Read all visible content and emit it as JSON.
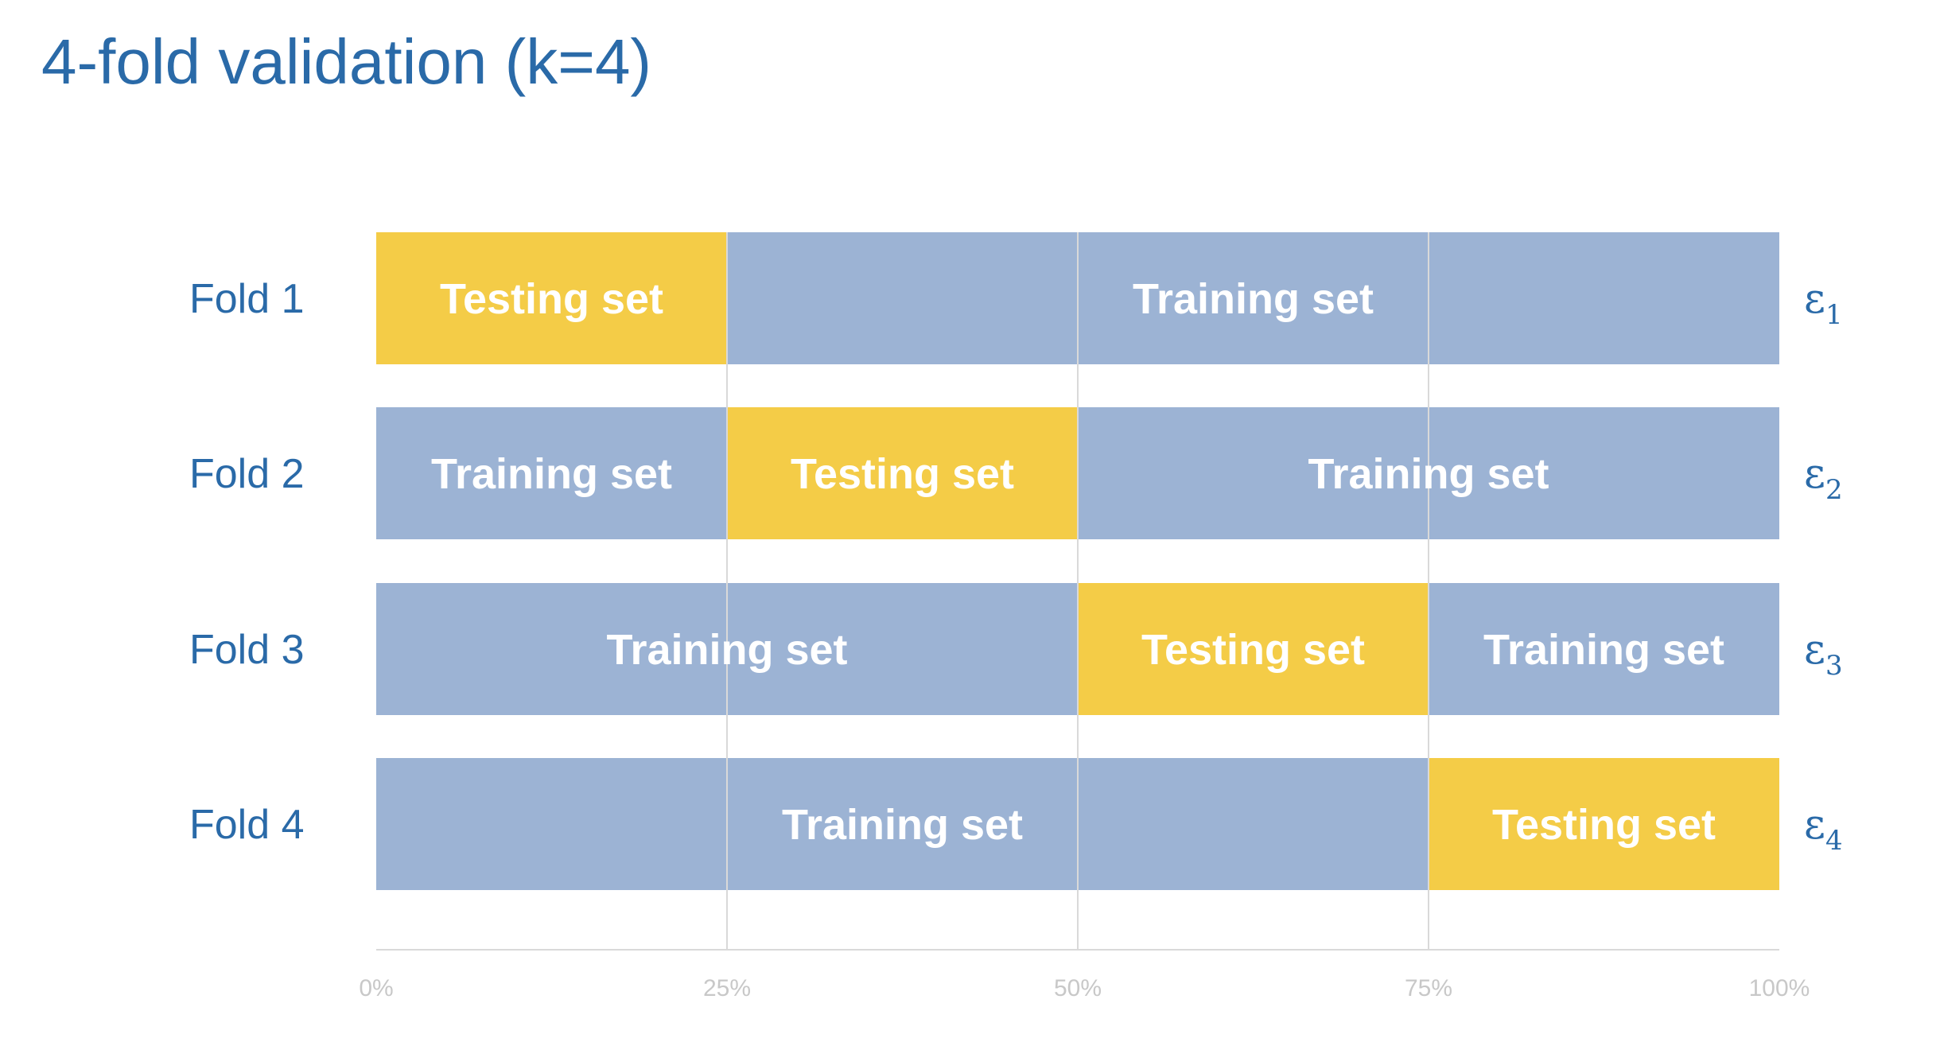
{
  "title": "4-fold validation (k=4)",
  "colors": {
    "testing": "#f4cc47",
    "training": "#9cb3d4",
    "title": "#2a6aa8",
    "grid": "#d9d9d9",
    "tick_text": "#c8c8c8"
  },
  "chart_data": {
    "type": "bar",
    "orientation": "horizontal",
    "stacked": true,
    "title": "4-fold validation (k=4)",
    "xlim": [
      0,
      100
    ],
    "x_ticks": [
      0,
      25,
      50,
      75,
      100
    ],
    "x_tick_labels": [
      "0%",
      "25%",
      "50%",
      "75%",
      "100%"
    ],
    "grid": true,
    "categories": [
      "Fold 1",
      "Fold 2",
      "Fold 3",
      "Fold 4"
    ],
    "rows": [
      {
        "label": "Fold 1",
        "error_symbol": "ε",
        "error_index": "1",
        "segments": [
          {
            "kind": "testing",
            "label": "Testing set",
            "start": 0,
            "end": 25
          },
          {
            "kind": "training",
            "label": "Training set",
            "start": 25,
            "end": 100
          }
        ]
      },
      {
        "label": "Fold 2",
        "error_symbol": "ε",
        "error_index": "2",
        "segments": [
          {
            "kind": "training",
            "label": "Training set",
            "start": 0,
            "end": 25
          },
          {
            "kind": "testing",
            "label": "Testing set",
            "start": 25,
            "end": 50
          },
          {
            "kind": "training",
            "label": "Training set",
            "start": 50,
            "end": 100
          }
        ]
      },
      {
        "label": "Fold 3",
        "error_symbol": "ε",
        "error_index": "3",
        "segments": [
          {
            "kind": "training",
            "label": "Training set",
            "start": 0,
            "end": 50
          },
          {
            "kind": "testing",
            "label": "Testing set",
            "start": 50,
            "end": 75
          },
          {
            "kind": "training",
            "label": "Training set",
            "start": 75,
            "end": 100
          }
        ]
      },
      {
        "label": "Fold 4",
        "error_symbol": "ε",
        "error_index": "4",
        "segments": [
          {
            "kind": "training",
            "label": "Training set",
            "start": 0,
            "end": 75
          },
          {
            "kind": "testing",
            "label": "Testing set",
            "start": 75,
            "end": 100
          }
        ]
      }
    ]
  }
}
